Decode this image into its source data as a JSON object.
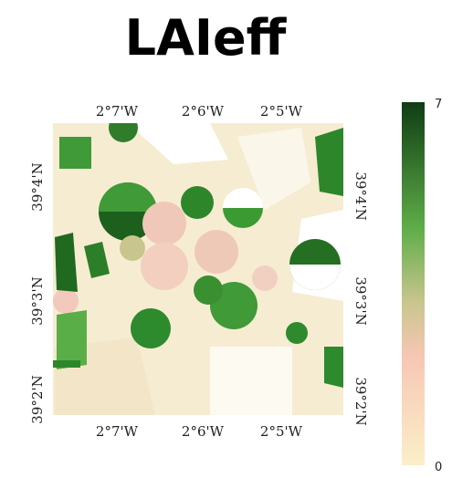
{
  "title": "LAIeff",
  "lon_labels": [
    "2°7'W",
    "2°6'W",
    "2°5'W"
  ],
  "lat_labels": [
    "39°4'N",
    "39°3'N",
    "39°2'N"
  ],
  "colorbar": {
    "max": 7,
    "min": 0
  }
}
